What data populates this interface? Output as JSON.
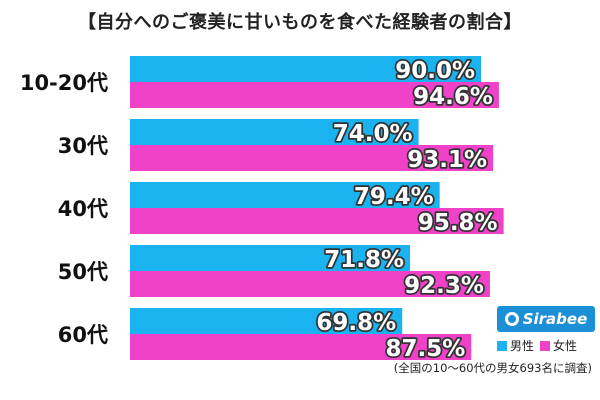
{
  "chart_data": {
    "type": "bar",
    "orientation": "horizontal",
    "title": "【自分へのご褒美に甘いものを食べた経験者の割合】",
    "categories": [
      "10-20代",
      "30代",
      "40代",
      "50代",
      "60代"
    ],
    "series": [
      {
        "name": "男性",
        "color": "#1ab3f0",
        "values": [
          90.0,
          74.0,
          79.4,
          71.8,
          69.8
        ]
      },
      {
        "name": "女性",
        "color": "#f042c8",
        "values": [
          94.6,
          93.1,
          95.8,
          92.3,
          87.5
        ]
      }
    ],
    "value_labels": {
      "male": [
        "90.0%",
        "74.0%",
        "79.4%",
        "71.8%",
        "69.8%"
      ],
      "female": [
        "94.6%",
        "93.1%",
        "95.8%",
        "92.3%",
        "87.5%"
      ]
    },
    "xlim": [
      0,
      100
    ],
    "grid": false,
    "legend": "bottom-right"
  },
  "legend": {
    "male": "男性",
    "female": "女性"
  },
  "logo": {
    "text": "Sirabee"
  },
  "footnote": "(全国の10〜60代の男女693名に調査)",
  "colors": {
    "male": "#1ab3f0",
    "female": "#f042c8",
    "brand": "#1c8fd6"
  }
}
